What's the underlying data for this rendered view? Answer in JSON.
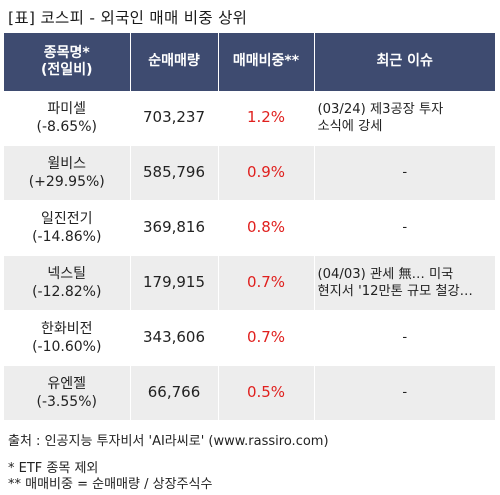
{
  "title": "[표] 코스피 - 외국인 매매 비중 상위",
  "header": {
    "col1_line1": "종목명*",
    "col1_line2": "(전일비)",
    "col2": "순매매량",
    "col3": "매매비중**",
    "col4": "최근 이슈"
  },
  "rows": [
    {
      "name": "파미셀",
      "change": "(-8.65%)",
      "volume": "703,237",
      "ratio": "1.2%",
      "issue_line1": "(03/24) 제3공장 투자",
      "issue_line2": "소식에 강세"
    },
    {
      "name": "윌비스",
      "change": "(+29.95%)",
      "volume": "585,796",
      "ratio": "0.9%",
      "issue_line1": "-",
      "issue_line2": ""
    },
    {
      "name": "일진전기",
      "change": "(-14.86%)",
      "volume": "369,816",
      "ratio": "0.8%",
      "issue_line1": "-",
      "issue_line2": ""
    },
    {
      "name": "넥스틸",
      "change": "(-12.82%)",
      "volume": "179,915",
      "ratio": "0.7%",
      "issue_line1": "(04/03) 관세 無… 미국",
      "issue_line2": "현지서 '12만톤 규모 철강…"
    },
    {
      "name": "한화비전",
      "change": "(-10.60%)",
      "volume": "343,606",
      "ratio": "0.7%",
      "issue_line1": "-",
      "issue_line2": ""
    },
    {
      "name": "유엔젤",
      "change": "(-3.55%)",
      "volume": "66,766",
      "ratio": "0.5%",
      "issue_line1": "-",
      "issue_line2": ""
    }
  ],
  "footer": {
    "source": "출처 : 인공지능 투자비서 'AI라씨로' (www.rassiro.com)",
    "note1": "* ETF 종목 제외",
    "note2": "** 매매비중 = 순매매량 / 상장주식수"
  },
  "colors": {
    "header_bg": "#3e4b70",
    "stripe": "#ededed",
    "ratio_text": "#e0201e"
  }
}
